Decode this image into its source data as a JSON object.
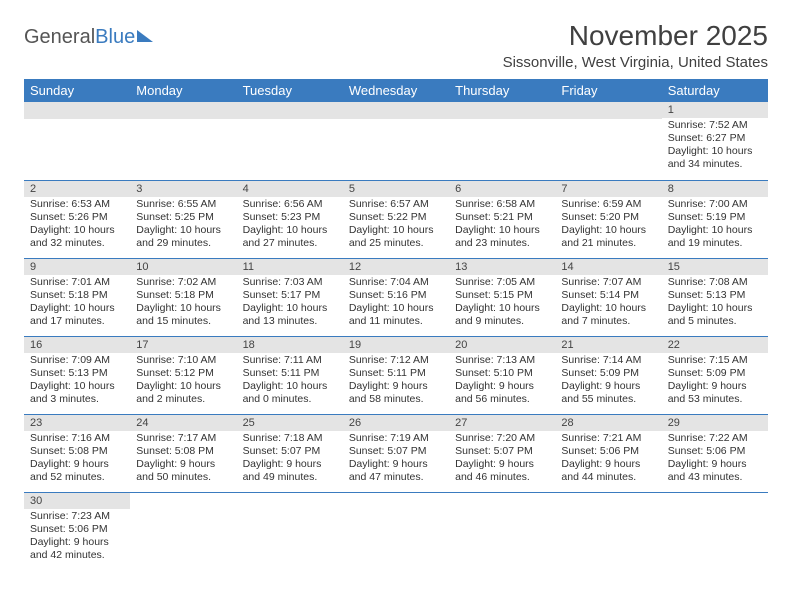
{
  "logo": {
    "general": "General",
    "blue": "Blue"
  },
  "title": "November 2025",
  "location": "Sissonville, West Virginia, United States",
  "columns": [
    "Sunday",
    "Monday",
    "Tuesday",
    "Wednesday",
    "Thursday",
    "Friday",
    "Saturday"
  ],
  "colors": {
    "header_bg": "#3a7bbf",
    "header_text": "#ffffff",
    "daynum_bg": "#e4e4e4",
    "border": "#3a7bbf",
    "body_text": "#333333",
    "page_bg": "#ffffff"
  },
  "weeks": [
    [
      null,
      null,
      null,
      null,
      null,
      null,
      {
        "n": "1",
        "sunrise": "Sunrise: 7:52 AM",
        "sunset": "Sunset: 6:27 PM",
        "daylight": "Daylight: 10 hours and 34 minutes."
      }
    ],
    [
      {
        "n": "2",
        "sunrise": "Sunrise: 6:53 AM",
        "sunset": "Sunset: 5:26 PM",
        "daylight": "Daylight: 10 hours and 32 minutes."
      },
      {
        "n": "3",
        "sunrise": "Sunrise: 6:55 AM",
        "sunset": "Sunset: 5:25 PM",
        "daylight": "Daylight: 10 hours and 29 minutes."
      },
      {
        "n": "4",
        "sunrise": "Sunrise: 6:56 AM",
        "sunset": "Sunset: 5:23 PM",
        "daylight": "Daylight: 10 hours and 27 minutes."
      },
      {
        "n": "5",
        "sunrise": "Sunrise: 6:57 AM",
        "sunset": "Sunset: 5:22 PM",
        "daylight": "Daylight: 10 hours and 25 minutes."
      },
      {
        "n": "6",
        "sunrise": "Sunrise: 6:58 AM",
        "sunset": "Sunset: 5:21 PM",
        "daylight": "Daylight: 10 hours and 23 minutes."
      },
      {
        "n": "7",
        "sunrise": "Sunrise: 6:59 AM",
        "sunset": "Sunset: 5:20 PM",
        "daylight": "Daylight: 10 hours and 21 minutes."
      },
      {
        "n": "8",
        "sunrise": "Sunrise: 7:00 AM",
        "sunset": "Sunset: 5:19 PM",
        "daylight": "Daylight: 10 hours and 19 minutes."
      }
    ],
    [
      {
        "n": "9",
        "sunrise": "Sunrise: 7:01 AM",
        "sunset": "Sunset: 5:18 PM",
        "daylight": "Daylight: 10 hours and 17 minutes."
      },
      {
        "n": "10",
        "sunrise": "Sunrise: 7:02 AM",
        "sunset": "Sunset: 5:18 PM",
        "daylight": "Daylight: 10 hours and 15 minutes."
      },
      {
        "n": "11",
        "sunrise": "Sunrise: 7:03 AM",
        "sunset": "Sunset: 5:17 PM",
        "daylight": "Daylight: 10 hours and 13 minutes."
      },
      {
        "n": "12",
        "sunrise": "Sunrise: 7:04 AM",
        "sunset": "Sunset: 5:16 PM",
        "daylight": "Daylight: 10 hours and 11 minutes."
      },
      {
        "n": "13",
        "sunrise": "Sunrise: 7:05 AM",
        "sunset": "Sunset: 5:15 PM",
        "daylight": "Daylight: 10 hours and 9 minutes."
      },
      {
        "n": "14",
        "sunrise": "Sunrise: 7:07 AM",
        "sunset": "Sunset: 5:14 PM",
        "daylight": "Daylight: 10 hours and 7 minutes."
      },
      {
        "n": "15",
        "sunrise": "Sunrise: 7:08 AM",
        "sunset": "Sunset: 5:13 PM",
        "daylight": "Daylight: 10 hours and 5 minutes."
      }
    ],
    [
      {
        "n": "16",
        "sunrise": "Sunrise: 7:09 AM",
        "sunset": "Sunset: 5:13 PM",
        "daylight": "Daylight: 10 hours and 3 minutes."
      },
      {
        "n": "17",
        "sunrise": "Sunrise: 7:10 AM",
        "sunset": "Sunset: 5:12 PM",
        "daylight": "Daylight: 10 hours and 2 minutes."
      },
      {
        "n": "18",
        "sunrise": "Sunrise: 7:11 AM",
        "sunset": "Sunset: 5:11 PM",
        "daylight": "Daylight: 10 hours and 0 minutes."
      },
      {
        "n": "19",
        "sunrise": "Sunrise: 7:12 AM",
        "sunset": "Sunset: 5:11 PM",
        "daylight": "Daylight: 9 hours and 58 minutes."
      },
      {
        "n": "20",
        "sunrise": "Sunrise: 7:13 AM",
        "sunset": "Sunset: 5:10 PM",
        "daylight": "Daylight: 9 hours and 56 minutes."
      },
      {
        "n": "21",
        "sunrise": "Sunrise: 7:14 AM",
        "sunset": "Sunset: 5:09 PM",
        "daylight": "Daylight: 9 hours and 55 minutes."
      },
      {
        "n": "22",
        "sunrise": "Sunrise: 7:15 AM",
        "sunset": "Sunset: 5:09 PM",
        "daylight": "Daylight: 9 hours and 53 minutes."
      }
    ],
    [
      {
        "n": "23",
        "sunrise": "Sunrise: 7:16 AM",
        "sunset": "Sunset: 5:08 PM",
        "daylight": "Daylight: 9 hours and 52 minutes."
      },
      {
        "n": "24",
        "sunrise": "Sunrise: 7:17 AM",
        "sunset": "Sunset: 5:08 PM",
        "daylight": "Daylight: 9 hours and 50 minutes."
      },
      {
        "n": "25",
        "sunrise": "Sunrise: 7:18 AM",
        "sunset": "Sunset: 5:07 PM",
        "daylight": "Daylight: 9 hours and 49 minutes."
      },
      {
        "n": "26",
        "sunrise": "Sunrise: 7:19 AM",
        "sunset": "Sunset: 5:07 PM",
        "daylight": "Daylight: 9 hours and 47 minutes."
      },
      {
        "n": "27",
        "sunrise": "Sunrise: 7:20 AM",
        "sunset": "Sunset: 5:07 PM",
        "daylight": "Daylight: 9 hours and 46 minutes."
      },
      {
        "n": "28",
        "sunrise": "Sunrise: 7:21 AM",
        "sunset": "Sunset: 5:06 PM",
        "daylight": "Daylight: 9 hours and 44 minutes."
      },
      {
        "n": "29",
        "sunrise": "Sunrise: 7:22 AM",
        "sunset": "Sunset: 5:06 PM",
        "daylight": "Daylight: 9 hours and 43 minutes."
      }
    ],
    [
      {
        "n": "30",
        "sunrise": "Sunrise: 7:23 AM",
        "sunset": "Sunset: 5:06 PM",
        "daylight": "Daylight: 9 hours and 42 minutes."
      },
      null,
      null,
      null,
      null,
      null,
      null
    ]
  ]
}
